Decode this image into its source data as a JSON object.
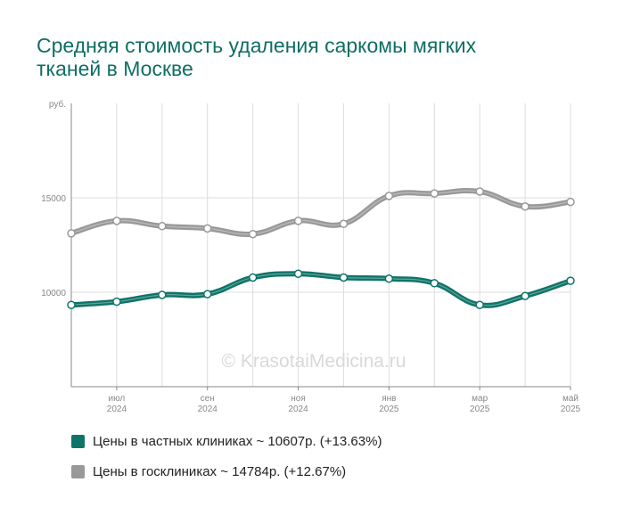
{
  "title": "Средняя стоимость удаления саркомы мягких тканей в Москве",
  "watermark": "© KrasotaiMedicina.ru",
  "colors": {
    "private": "#0f7468",
    "public": "#999999",
    "grid": "#dddddd",
    "axis": "#888888"
  },
  "chart_data": {
    "type": "line",
    "title": "Средняя стоимость удаления саркомы мягких тканей в Москве",
    "y_unit": "руб.",
    "ylim": [
      5000,
      20000
    ],
    "yticks": [
      10000,
      15000
    ],
    "ytick_labels": [
      "10000",
      "15000"
    ],
    "x": [
      "2024-06",
      "2024-07",
      "2024-08",
      "2024-09",
      "2024-10",
      "2024-11",
      "2024-12",
      "2025-01",
      "2025-02",
      "2025-03",
      "2025-04",
      "2025-05"
    ],
    "xtick_labels": [
      {
        "index": 1,
        "month": "июл",
        "year": "2024"
      },
      {
        "index": 3,
        "month": "сен",
        "year": "2024"
      },
      {
        "index": 5,
        "month": "ноя",
        "year": "2024"
      },
      {
        "index": 7,
        "month": "янв",
        "year": "2025"
      },
      {
        "index": 9,
        "month": "мар",
        "year": "2025"
      },
      {
        "index": 11,
        "month": "май",
        "year": "2025"
      }
    ],
    "grid": true,
    "legend_position": "bottom",
    "series": [
      {
        "name": "Цены в частных клиниках",
        "legend_label": "Цены в частных клиниках ~ 10607р. (+13.63%)",
        "color": "#0f7468",
        "values": [
          9330,
          9500,
          9860,
          9900,
          10780,
          10980,
          10780,
          10720,
          10480,
          9330,
          9800,
          10607
        ]
      },
      {
        "name": "Цены в госклиниках",
        "legend_label": "Цены в госклиниках ~ 14784р. (+12.67%)",
        "color": "#999999",
        "values": [
          13120,
          13780,
          13500,
          13380,
          13080,
          13780,
          13620,
          15100,
          15230,
          15330,
          14540,
          14784
        ]
      }
    ]
  }
}
